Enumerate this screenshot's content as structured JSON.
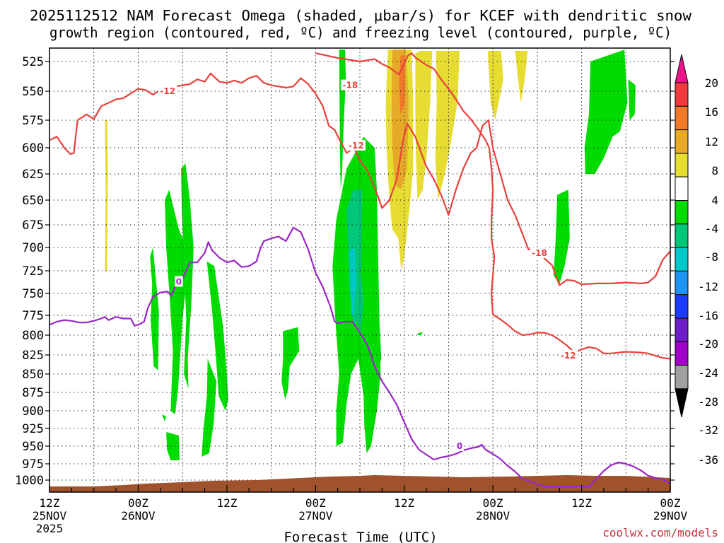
{
  "chart_data": {
    "type": "contour",
    "title_line1": "2025112512 NAM Forecast Omega (shaded, μbar/s) for KCEF with dendritic snow",
    "title_line2": "growth region (contoured, red, ºC) and freezing level (contoured, purple, ºC)",
    "xlabel": "Forecast Time (UTC)",
    "credit": "coolwx.com/models",
    "y_axis": {
      "unit": "hPa",
      "ticks": [
        "525",
        "550",
        "575",
        "600",
        "625",
        "650",
        "675",
        "700",
        "725",
        "750",
        "775",
        "800",
        "825",
        "850",
        "875",
        "900",
        "925",
        "950",
        "975",
        "1000"
      ]
    },
    "x_axis": {
      "unit": "forecast hour",
      "range": [
        0,
        84
      ],
      "ticks": [
        {
          "hour": 0,
          "l1": "12Z",
          "l2": "25NOV",
          "l3": "2025"
        },
        {
          "hour": 12,
          "l1": "00Z",
          "l2": "26NOV"
        },
        {
          "hour": 24,
          "l1": "12Z",
          "l2": ""
        },
        {
          "hour": 36,
          "l1": "00Z",
          "l2": "27NOV"
        },
        {
          "hour": 48,
          "l1": "12Z",
          "l2": ""
        },
        {
          "hour": 60,
          "l1": "00Z",
          "l2": "28NOV"
        },
        {
          "hour": 72,
          "l1": "12Z",
          "l2": ""
        },
        {
          "hour": 84,
          "l1": "00Z",
          "l2": "29NOV"
        }
      ]
    },
    "colorbar": {
      "labels": [
        "20",
        "16",
        "12",
        "8",
        "4",
        "-4",
        "-8",
        "-12",
        "-16",
        "-20",
        "-24",
        "-28",
        "-32",
        "-36"
      ],
      "bins": [
        {
          "from": 16,
          "to": 20,
          "color": "#f03c3c"
        },
        {
          "from": 12,
          "to": 16,
          "color": "#f07828"
        },
        {
          "from": 8,
          "to": 12,
          "color": "#e6aa28"
        },
        {
          "from": 4,
          "to": 8,
          "color": "#e6dc32"
        },
        {
          "from": -4,
          "to": 4,
          "color": "#ffffff"
        },
        {
          "from": -8,
          "to": -4,
          "color": "#00dc00"
        },
        {
          "from": -12,
          "to": -8,
          "color": "#00c878"
        },
        {
          "from": -16,
          "to": -12,
          "color": "#00c8c8"
        },
        {
          "from": -20,
          "to": -16,
          "color": "#1e96f0"
        },
        {
          "from": -24,
          "to": -20,
          "color": "#1e3cff"
        },
        {
          "from": -28,
          "to": -24,
          "color": "#6e1ec8"
        },
        {
          "from": -32,
          "to": -28,
          "color": "#a000c8"
        },
        {
          "from": -36,
          "to": -32,
          "color": "#a0a0a0"
        }
      ],
      "top_triangle_color": "#f0148c",
      "bottom_triangle_color": "#000000"
    },
    "contour_labels": [
      {
        "text": "-12",
        "color": "#e8413c",
        "hour": 16.0,
        "hPa": 550
      },
      {
        "text": "-18",
        "color": "#e8413c",
        "hour": 40.7,
        "hPa": 545
      },
      {
        "text": "-12",
        "color": "#e8413c",
        "hour": 41.5,
        "hPa": 598
      },
      {
        "text": "-18",
        "color": "#e8413c",
        "hour": 66.3,
        "hPa": 706
      },
      {
        "text": "-12",
        "color": "#e8413c",
        "hour": 70.2,
        "hPa": 826
      },
      {
        "text": "0",
        "color": "#9b26c8",
        "hour": 17.5,
        "hPa": 737
      },
      {
        "text": "0",
        "color": "#9b26c8",
        "hour": 55.5,
        "hPa": 950
      }
    ],
    "series": [
      {
        "name": "dgz_upper_-12C",
        "color": "#e8413c",
        "points": [
          [
            0,
            593
          ],
          [
            1,
            590
          ],
          [
            2,
            600
          ],
          [
            2.8,
            606
          ],
          [
            3.3,
            605
          ],
          [
            3.8,
            575
          ],
          [
            5,
            570
          ],
          [
            6,
            574
          ],
          [
            7,
            563
          ],
          [
            9,
            557
          ],
          [
            10,
            556
          ],
          [
            12,
            548
          ],
          [
            13,
            549
          ],
          [
            14,
            553
          ],
          [
            15,
            549
          ],
          [
            17,
            546
          ],
          [
            19,
            544
          ],
          [
            20,
            540
          ],
          [
            21,
            542
          ],
          [
            21.8,
            535
          ],
          [
            22.3,
            538
          ],
          [
            23,
            542
          ],
          [
            24,
            543
          ],
          [
            25,
            541
          ],
          [
            26,
            543
          ],
          [
            27,
            539
          ],
          [
            28,
            537
          ],
          [
            29,
            543
          ],
          [
            30,
            545
          ],
          [
            32,
            547
          ],
          [
            33,
            546
          ],
          [
            34,
            539
          ],
          [
            35,
            544
          ],
          [
            36,
            552
          ],
          [
            37,
            563
          ],
          [
            37.8,
            580
          ],
          [
            38.6,
            584
          ],
          [
            39.2,
            592
          ],
          [
            40.2,
            605
          ],
          [
            41.2,
            600
          ],
          [
            42,
            612
          ],
          [
            43,
            622
          ],
          [
            44,
            638
          ],
          [
            45,
            658
          ],
          [
            46,
            650
          ],
          [
            47,
            630
          ],
          [
            47.8,
            595
          ],
          [
            48.4,
            578
          ],
          [
            49.5,
            590
          ],
          [
            50.3,
            605
          ],
          [
            51,
            618
          ],
          [
            52,
            630
          ],
          [
            53,
            645
          ],
          [
            54,
            665
          ],
          [
            55,
            640
          ],
          [
            56,
            620
          ],
          [
            57,
            605
          ],
          [
            57.8,
            600
          ],
          [
            58.6,
            580
          ],
          [
            59.4,
            575
          ],
          [
            60,
            600
          ],
          [
            61,
            625
          ],
          [
            62,
            650
          ],
          [
            63,
            665
          ],
          [
            64,
            685
          ],
          [
            64.8,
            702
          ],
          [
            66,
            702
          ],
          [
            67,
            712
          ],
          [
            68,
            719
          ],
          [
            69,
            741
          ],
          [
            70,
            735
          ],
          [
            71,
            736
          ],
          [
            72,
            740
          ],
          [
            74,
            739
          ],
          [
            76,
            739
          ],
          [
            78,
            738
          ],
          [
            80,
            739
          ],
          [
            81,
            738
          ],
          [
            82,
            731
          ],
          [
            83,
            713
          ],
          [
            84,
            704
          ]
        ]
      },
      {
        "name": "dgz_lower_-12C",
        "color": "#e8413c",
        "points": [
          [
            36,
            518
          ],
          [
            39,
            522
          ],
          [
            42,
            525
          ],
          [
            44,
            523
          ],
          [
            45,
            527
          ],
          [
            46,
            530
          ],
          [
            47.3,
            536
          ],
          [
            48.5,
            520
          ],
          [
            49,
            518
          ],
          [
            49.6,
            522
          ],
          [
            51,
            528
          ],
          [
            52,
            531
          ],
          [
            53,
            540
          ],
          [
            54,
            548
          ],
          [
            55,
            557
          ],
          [
            56,
            567
          ],
          [
            57,
            574
          ],
          [
            58,
            583
          ],
          [
            59,
            593
          ],
          [
            59.5,
            600
          ],
          [
            59.8,
            620
          ],
          [
            60,
            640
          ],
          [
            59.8,
            670
          ],
          [
            59.8,
            690
          ],
          [
            60,
            700
          ],
          [
            60.2,
            710
          ],
          [
            60,
            730
          ],
          [
            59.8,
            750
          ],
          [
            60,
            774
          ],
          [
            61,
            780
          ],
          [
            62,
            787
          ],
          [
            63,
            795
          ],
          [
            64,
            800
          ],
          [
            65,
            799
          ],
          [
            66,
            797
          ],
          [
            67,
            797
          ],
          [
            68,
            800
          ],
          [
            69,
            806
          ],
          [
            70,
            813
          ],
          [
            71,
            822
          ],
          [
            72,
            818
          ],
          [
            73,
            815
          ],
          [
            74,
            817
          ],
          [
            75,
            823
          ],
          [
            76,
            823
          ],
          [
            78,
            821
          ],
          [
            80,
            822
          ],
          [
            81,
            823
          ],
          [
            82,
            826
          ],
          [
            83,
            829
          ],
          [
            84,
            830
          ]
        ]
      },
      {
        "name": "freezing_level_0C",
        "color": "#9b26c8",
        "points": [
          [
            0,
            787
          ],
          [
            1,
            783
          ],
          [
            2,
            781
          ],
          [
            3,
            782
          ],
          [
            4,
            784
          ],
          [
            5,
            784
          ],
          [
            6,
            782
          ],
          [
            7,
            779
          ],
          [
            7.5,
            777
          ],
          [
            8,
            781
          ],
          [
            9,
            777
          ],
          [
            10,
            779
          ],
          [
            11,
            779
          ],
          [
            11.5,
            788
          ],
          [
            12,
            787
          ],
          [
            12.8,
            783
          ],
          [
            13.3,
            767
          ],
          [
            14,
            754
          ],
          [
            15,
            749
          ],
          [
            16,
            748
          ],
          [
            16.5,
            753
          ],
          [
            17,
            742
          ],
          [
            18,
            734
          ],
          [
            19,
            716
          ],
          [
            20,
            716
          ],
          [
            21,
            706
          ],
          [
            21.5,
            694
          ],
          [
            22,
            703
          ],
          [
            23,
            711
          ],
          [
            24,
            716
          ],
          [
            25,
            714
          ],
          [
            26,
            721
          ],
          [
            27,
            720
          ],
          [
            28,
            715
          ],
          [
            28.5,
            702
          ],
          [
            29,
            693
          ],
          [
            30,
            690
          ],
          [
            31,
            688
          ],
          [
            32,
            693
          ],
          [
            33,
            678
          ],
          [
            34,
            683
          ],
          [
            35,
            702
          ],
          [
            36,
            727
          ],
          [
            37,
            743
          ],
          [
            38,
            765
          ],
          [
            38.6,
            783
          ],
          [
            39,
            785
          ],
          [
            40,
            783
          ],
          [
            41,
            783
          ],
          [
            41.5,
            790
          ],
          [
            42,
            797
          ],
          [
            42.5,
            804
          ],
          [
            43,
            812
          ],
          [
            44,
            840
          ],
          [
            45,
            860
          ],
          [
            46,
            875
          ],
          [
            47,
            892
          ],
          [
            48,
            916
          ],
          [
            49,
            940
          ],
          [
            50,
            955
          ],
          [
            51,
            962
          ],
          [
            52,
            969
          ],
          [
            53,
            966
          ],
          [
            54,
            964
          ],
          [
            55,
            961
          ],
          [
            56,
            956
          ],
          [
            57,
            953
          ],
          [
            58,
            951
          ],
          [
            58.5,
            948
          ],
          [
            59,
            955
          ],
          [
            60,
            961
          ],
          [
            61,
            968
          ],
          [
            62,
            978
          ],
          [
            63,
            987
          ],
          [
            64,
            998
          ],
          [
            67,
            1010
          ],
          [
            70,
            1010
          ],
          [
            73,
            1010
          ],
          [
            74,
            998
          ],
          [
            75,
            986
          ],
          [
            76,
            977
          ],
          [
            77,
            973
          ],
          [
            78,
            975
          ],
          [
            79,
            979
          ],
          [
            80,
            985
          ],
          [
            81,
            993
          ],
          [
            82,
            997
          ],
          [
            83,
            999
          ],
          [
            84,
            1005
          ]
        ]
      }
    ]
  }
}
